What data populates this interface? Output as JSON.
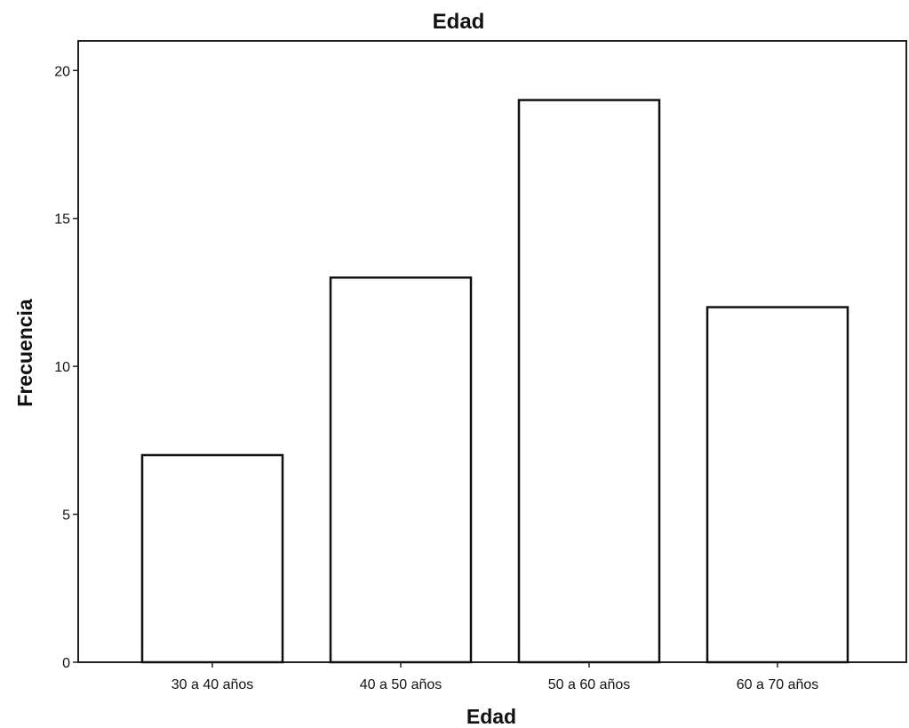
{
  "chart_data": {
    "type": "bar",
    "title": "Edad",
    "xlabel": "Edad",
    "ylabel": "Frecuencia",
    "categories": [
      "30 a 40 años",
      "40 a 50 años",
      "50 a 60 años",
      "60 a 70 años"
    ],
    "values": [
      7,
      13,
      19,
      12
    ],
    "ylim": [
      0,
      21
    ],
    "yticks": [
      "0",
      "5",
      "10",
      "15",
      "20"
    ],
    "grid": false,
    "legend": "none",
    "bar_fill_color": "#ffffff",
    "bar_edge_color": "#111111"
  }
}
